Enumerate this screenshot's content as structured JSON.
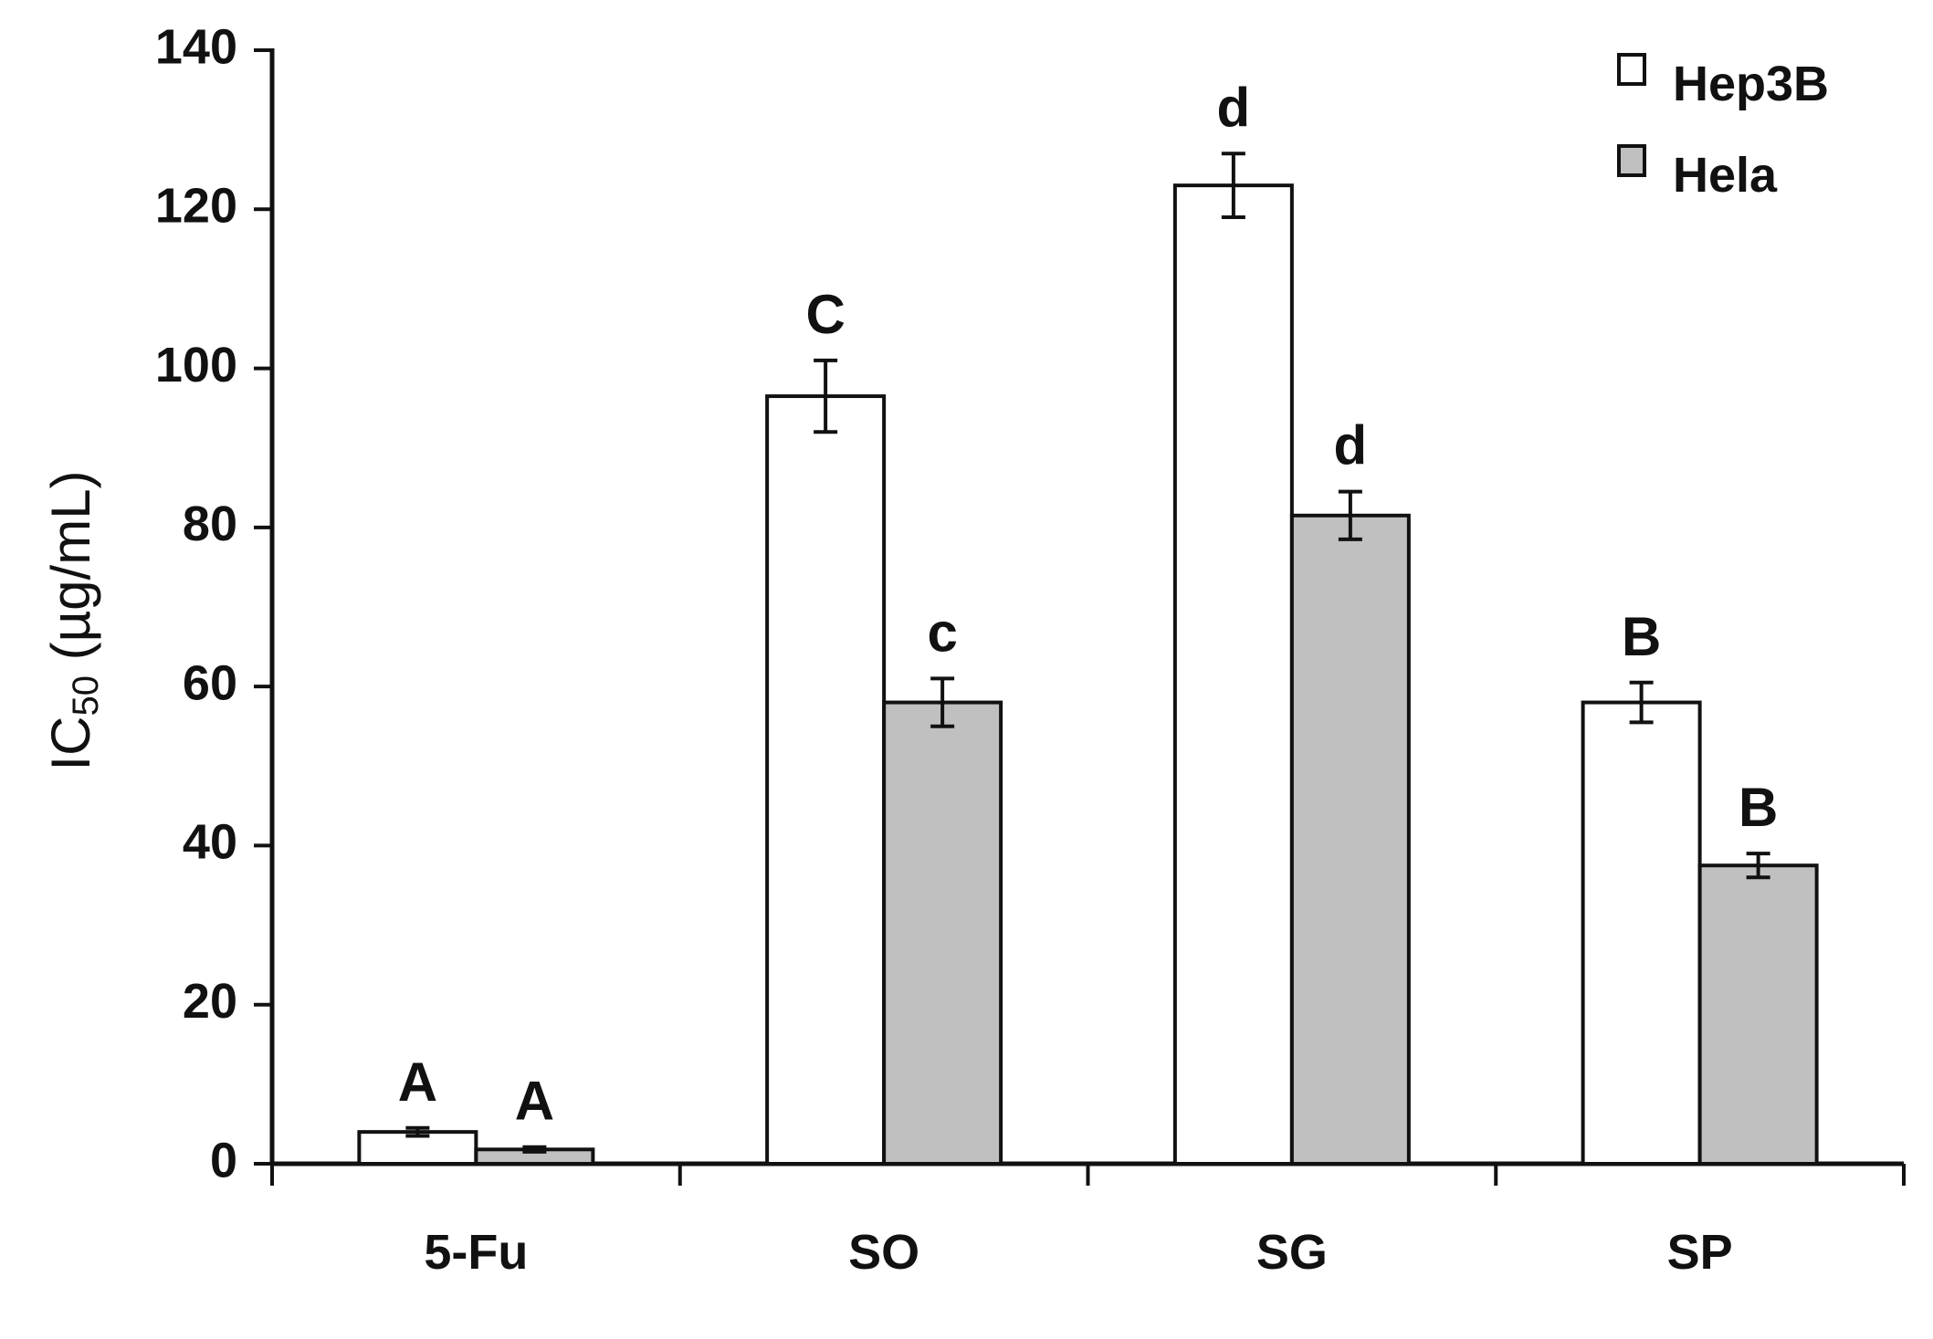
{
  "chart_data": {
    "type": "bar",
    "categories": [
      "5-Fu",
      "SO",
      "SG",
      "SP"
    ],
    "ylabel": "IC",
    "ylabel_sub": "50",
    "ylabel_unit": " (µg/mL)",
    "ylim": [
      0,
      140
    ],
    "yticks": [
      0,
      20,
      40,
      60,
      80,
      100,
      120,
      140
    ],
    "legend_position": "top-right",
    "series": [
      {
        "name": "Hep3B",
        "color": "#ffffff",
        "values": [
          4,
          96.5,
          123,
          58
        ],
        "errors": [
          0.5,
          4.5,
          4,
          2.5
        ],
        "labels": [
          "A",
          "C",
          "d",
          "B"
        ]
      },
      {
        "name": "Hela",
        "color": "#c0c0c0",
        "values": [
          1.8,
          58,
          81.5,
          37.5
        ],
        "errors": [
          0.3,
          3,
          3,
          1.5
        ],
        "labels": [
          "A",
          "c",
          "d",
          "B"
        ]
      }
    ]
  }
}
